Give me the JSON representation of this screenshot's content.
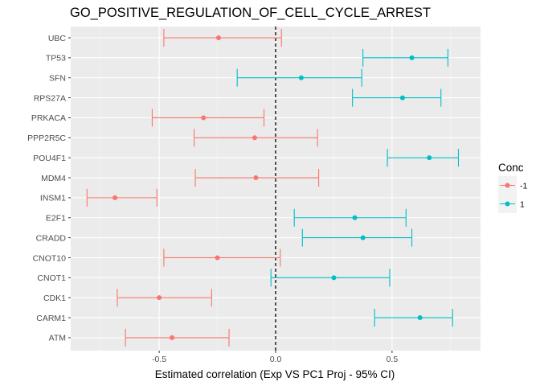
{
  "chart_data": {
    "type": "errorbar",
    "title": "GO_POSITIVE_REGULATION_OF_CELL_CYCLE_ARREST",
    "xlabel": "Estimated correlation (Exp VS PC1 Proj - 95% CI)",
    "ylabel": "",
    "xlim": [
      -0.88,
      0.88
    ],
    "x_ticks": [
      -0.5,
      0.0,
      0.5
    ],
    "x_tick_labels": [
      "-0.5",
      "0.0",
      "0.5"
    ],
    "reference_line": {
      "x": 0,
      "style": "dashed",
      "color": "#000000"
    },
    "grid": true,
    "legend": {
      "title": "Conc",
      "position": "right",
      "entries": [
        {
          "label": "-1",
          "color": "#F8766D"
        },
        {
          "label": "1",
          "color": "#00BFC4"
        }
      ]
    },
    "categories": [
      "UBC",
      "TP53",
      "SFN",
      "RPS27A",
      "PRKACA",
      "PPP2R5C",
      "POU4F1",
      "MDM4",
      "INSM1",
      "E2F1",
      "CRADD",
      "CNOT10",
      "CNOT1",
      "CDK1",
      "CARM1",
      "ATM"
    ],
    "points": [
      {
        "gene": "UBC",
        "estimate": -0.245,
        "lower": -0.48,
        "upper": 0.025,
        "conc": "-1"
      },
      {
        "gene": "TP53",
        "estimate": 0.585,
        "lower": 0.375,
        "upper": 0.74,
        "conc": "1"
      },
      {
        "gene": "SFN",
        "estimate": 0.11,
        "lower": -0.165,
        "upper": 0.37,
        "conc": "1"
      },
      {
        "gene": "RPS27A",
        "estimate": 0.545,
        "lower": 0.33,
        "upper": 0.71,
        "conc": "1"
      },
      {
        "gene": "PRKACA",
        "estimate": -0.31,
        "lower": -0.53,
        "upper": -0.05,
        "conc": "-1"
      },
      {
        "gene": "PPP2R5C",
        "estimate": -0.09,
        "lower": -0.35,
        "upper": 0.18,
        "conc": "-1"
      },
      {
        "gene": "POU4F1",
        "estimate": 0.66,
        "lower": 0.48,
        "upper": 0.785,
        "conc": "1"
      },
      {
        "gene": "MDM4",
        "estimate": -0.085,
        "lower": -0.345,
        "upper": 0.185,
        "conc": "-1"
      },
      {
        "gene": "INSM1",
        "estimate": -0.69,
        "lower": -0.81,
        "upper": -0.51,
        "conc": "-1"
      },
      {
        "gene": "E2F1",
        "estimate": 0.34,
        "lower": 0.08,
        "upper": 0.56,
        "conc": "1"
      },
      {
        "gene": "CRADD",
        "estimate": 0.375,
        "lower": 0.115,
        "upper": 0.585,
        "conc": "1"
      },
      {
        "gene": "CNOT10",
        "estimate": -0.25,
        "lower": -0.48,
        "upper": 0.02,
        "conc": "-1"
      },
      {
        "gene": "CNOT1",
        "estimate": 0.25,
        "lower": -0.02,
        "upper": 0.49,
        "conc": "1"
      },
      {
        "gene": "CDK1",
        "estimate": -0.5,
        "lower": -0.68,
        "upper": -0.275,
        "conc": "-1"
      },
      {
        "gene": "CARM1",
        "estimate": 0.62,
        "lower": 0.425,
        "upper": 0.76,
        "conc": "1"
      },
      {
        "gene": "ATM",
        "estimate": -0.445,
        "lower": -0.645,
        "upper": -0.2,
        "conc": "-1"
      }
    ]
  }
}
